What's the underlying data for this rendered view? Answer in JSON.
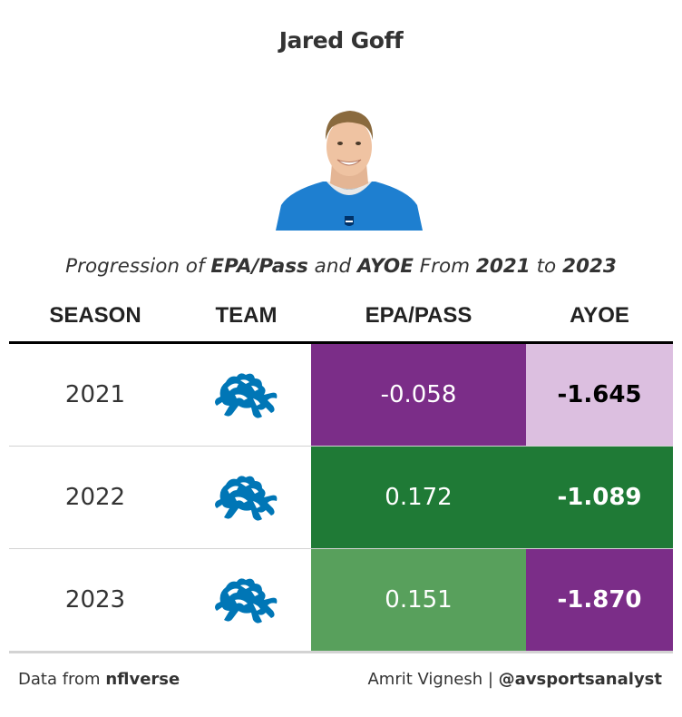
{
  "title": "Jared Goff",
  "subtitle": {
    "p1": "Progression of ",
    "b1": "EPA/Pass",
    "p2": " and ",
    "b2": "AYOE",
    "p3": " From ",
    "b3": "2021",
    "p4": " to ",
    "b4": "2023"
  },
  "columns": [
    "SEASON",
    "TEAM",
    "EPA/PASS",
    "AYOE"
  ],
  "chart_data": {
    "type": "table",
    "columns": [
      "SEASON",
      "TEAM",
      "EPA/PASS",
      "AYOE"
    ],
    "rows": [
      {
        "season": "2021",
        "team_logo": "detroit-lions-logo-icon",
        "epa": "-0.058",
        "ayoe": "-1.645",
        "epa_bg": "#7b2d88",
        "epa_fg": "#ffffff",
        "ayoe_bg": "#dcbfe0",
        "ayoe_fg": "#000000"
      },
      {
        "season": "2022",
        "team_logo": "detroit-lions-logo-icon",
        "epa": "0.172",
        "ayoe": "-1.089",
        "epa_bg": "#1f7a36",
        "epa_fg": "#ffffff",
        "ayoe_bg": "#1f7a36",
        "ayoe_fg": "#ffffff"
      },
      {
        "season": "2023",
        "team_logo": "detroit-lions-logo-icon",
        "epa": "0.151",
        "ayoe": "-1.870",
        "epa_bg": "#58a05c",
        "epa_fg": "#ffffff",
        "ayoe_bg": "#7b2d88",
        "ayoe_fg": "#ffffff"
      }
    ]
  },
  "footer": {
    "left_prefix": "Data from ",
    "left_bold": "nflverse",
    "right_prefix": "Amrit Vignesh | ",
    "right_bold": "@avsportsanalyst"
  },
  "colors": {
    "lions_blue": "#0076b6",
    "jersey_blue": "#1e7fd0"
  }
}
